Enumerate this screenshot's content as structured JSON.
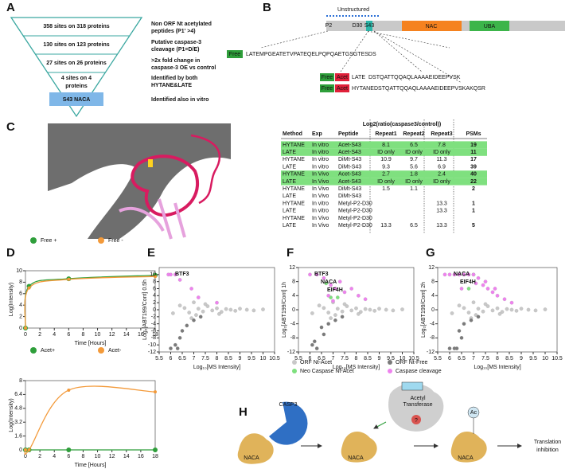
{
  "panels": {
    "letters": [
      "A",
      "B",
      "C",
      "D",
      "E",
      "F",
      "G",
      "H"
    ],
    "A": {
      "levels": [
        [
          "358 sites on 318 proteins"
        ],
        [
          "130 sites on 123 proteins"
        ],
        [
          "27 sites on 26 proteins"
        ],
        [
          "4 sites on 4",
          "proteins"
        ]
      ],
      "final": "S43 NACA",
      "descriptions": [
        [
          "Non ORF Nt acetylated",
          "peptides (P1' >4)"
        ],
        [
          "Putative caspase-3",
          "cleavage (P1=D/E)"
        ],
        [
          ">2x fold change in",
          "caspase-3 OE vs control"
        ],
        [
          "Identified by both",
          "HYTANE&LATE"
        ],
        [
          "Identified also in vitro"
        ]
      ]
    },
    "B": {
      "unstructured": "Unstructured",
      "sites": [
        "P2",
        "D30",
        "S43"
      ],
      "domains": [
        "NAC",
        "UBA"
      ],
      "tags": [
        "Free",
        "Acet"
      ],
      "methods": [
        "LATE",
        "HYTANE"
      ],
      "sequences": [
        "MPGEATETVPATEQELPQPQAETGSGTESDS",
        "DSTQATTQQAQLAAAAEIDEEPVSK",
        "DSTQATTQQAQLAAAAEIDEEPVSKAKQSR"
      ]
    },
    "C": {
      "group_header": "Log2(ratio(caspase3/control))",
      "header": [
        "Method",
        "Exp",
        "Peptide",
        "Repeat1",
        "Repeat2",
        "Repeat3",
        "PSMs"
      ],
      "rows": [
        {
          "cells": [
            "HYTANE",
            "In vitro",
            "Acet-S43",
            "8.1",
            "6.5",
            "7.8",
            "19"
          ],
          "highlight": true
        },
        {
          "cells": [
            "LATE",
            "In vitro",
            "Acet-S43",
            "ID only",
            "ID only",
            "ID only",
            "11"
          ],
          "highlight": true
        },
        {
          "cells": [
            "HYTANE",
            "In vitro",
            "DiMt-S43",
            "10.9",
            "9.7",
            "11.3",
            "17"
          ],
          "highlight": false
        },
        {
          "cells": [
            "LATE",
            "In vitro",
            "DiMt-S43",
            "9.3",
            "5.6",
            "6.9",
            "39"
          ],
          "highlight": false
        },
        {
          "cells": [
            "HYTANE",
            "In Vivo",
            "Acet-S43",
            "2.7",
            "1.8",
            "2.4",
            "40"
          ],
          "highlight": true
        },
        {
          "cells": [
            "LATE",
            "In Vivo",
            "Acet-S43",
            "ID only",
            "ID only",
            "ID only",
            "22"
          ],
          "highlight": true
        },
        {
          "cells": [
            "HYTANE",
            "In Vivo",
            "DiMt-S43",
            "1.5",
            "1.1",
            null,
            "2"
          ],
          "highlight": false
        },
        {
          "cells": [
            "LATE",
            "In Vivo",
            "DiMt-S43",
            null,
            null,
            null,
            null
          ],
          "highlight": false
        },
        {
          "cells": [
            "HYTANE",
            "In vitro",
            "Metyl-P2-D30",
            null,
            null,
            "13.3",
            "1"
          ],
          "highlight": false
        },
        {
          "cells": [
            "LATE",
            "In vitro",
            "Metyl-P2-D30",
            null,
            null,
            "13.3",
            "1"
          ],
          "highlight": false
        },
        {
          "cells": [
            "HYTANE",
            "In Vivo",
            "Metyl-P2-D30",
            null,
            null,
            null,
            null
          ],
          "highlight": false
        },
        {
          "cells": [
            "LATE",
            "In Vivo",
            "Metyl-P2-D30",
            "13.3",
            "6.5",
            "13.3",
            "5"
          ],
          "highlight": false
        }
      ]
    },
    "H": {
      "enzyme": "CASP3",
      "protein": "NACA",
      "transferase": [
        "Acetyl",
        "Transferase"
      ],
      "unknown": "?",
      "acetyl": "Ac",
      "outcome": [
        "Translation",
        "inhibition"
      ]
    }
  },
  "chart_data": [
    {
      "type": "line",
      "xlabel": "Time [Hours]",
      "ylabel": "Log(Intensity)",
      "x": [
        0,
        0.5,
        6,
        18
      ],
      "series": [
        {
          "name": "Free +",
          "color": "#2e9e3a",
          "values": [
            0,
            7.3,
            8.6,
            9.2
          ]
        },
        {
          "name": "Free -",
          "color": "#f39a3a",
          "values": [
            0,
            7,
            8.5,
            9
          ]
        }
      ],
      "xlim": [
        0,
        18
      ],
      "xticks": [
        0,
        2,
        4,
        6,
        8,
        10,
        12,
        14,
        16,
        18
      ],
      "ylim": [
        0,
        10
      ],
      "yticks": [
        0,
        2,
        4,
        6,
        8,
        10
      ]
    },
    {
      "type": "line",
      "xlabel": "Time [Hours]",
      "ylabel": "Log(Intensity)",
      "x": [
        0,
        0.5,
        6,
        18
      ],
      "series": [
        {
          "name": "Acet+",
          "color": "#2e9e3a",
          "values": [
            0,
            0,
            0,
            0
          ]
        },
        {
          "name": "Acet-",
          "color": "#f39a3a",
          "values": [
            0,
            0,
            6.9,
            6.7
          ]
        }
      ],
      "xlim": [
        0,
        18
      ],
      "xticks": [
        0,
        2,
        4,
        6,
        8,
        10,
        12,
        14,
        16,
        18
      ],
      "ylim": [
        0,
        8
      ],
      "yticks": [
        0,
        1.6,
        3.2,
        4.8,
        6.4,
        8
      ]
    },
    {
      "type": "scatter",
      "xlabel": "Log₁₀[MS Intensity]",
      "ylabel": "Log₂[ABT199/Cont] 0.5h",
      "annotations": [
        "BTF3"
      ],
      "xlim": [
        5.5,
        10.5
      ],
      "xticks": [
        5.5,
        6,
        6.5,
        7,
        7.5,
        8,
        8.5,
        9,
        9.5,
        10,
        10.5
      ],
      "ylim": [
        -12,
        12
      ],
      "yticks": [
        -12,
        -10,
        -8,
        -6,
        -4,
        -2,
        0,
        2,
        4,
        6,
        8,
        10
      ],
      "series": [
        {
          "name": "ORF Nt-Acet",
          "color": "#c8c8c8",
          "x": [
            6.1,
            6.4,
            6.6,
            6.8,
            7.0,
            7.2,
            7.4,
            7.6,
            7.8,
            8.0,
            8.2,
            8.4,
            8.6,
            8.8,
            9.0,
            9.3,
            9.6,
            10.0,
            6.9,
            7.5,
            8.1,
            7.1
          ],
          "y": [
            -1,
            1.2,
            0.5,
            -0.8,
            2.1,
            0.3,
            -0.5,
            1.0,
            -0.2,
            0.4,
            -0.6,
            0.2,
            0,
            -0.3,
            0.3,
            0,
            -0.2,
            0.1,
            -2.4,
            1.6,
            -1.2,
            -1.5
          ]
        },
        {
          "name": "ORF Nt-Free",
          "color": "#7a7a7a",
          "x": [
            6.0,
            6.2,
            6.3,
            6.5,
            6.7,
            7.0,
            7.3,
            6.4
          ],
          "y": [
            -11,
            -10,
            -11,
            -6,
            -4.5,
            -3,
            -2,
            -8
          ]
        },
        {
          "name": "Neo Caspase Nt-Acet",
          "color": "#7ee07e",
          "x": [],
          "y": []
        },
        {
          "name": "Caspase cleavage",
          "color": "#ee82ee",
          "x": [
            5.9,
            6.0,
            6.2,
            6.4,
            6.9,
            7.2,
            8.0
          ],
          "y": [
            10,
            10,
            10,
            8.5,
            6,
            3.5,
            2
          ]
        }
      ]
    },
    {
      "type": "scatter",
      "xlabel": "Log₁₀[MS Intensity]",
      "ylabel": "Log₂[ABT199/Cont] 1h",
      "annotations": [
        "BTF3",
        "NACA",
        "EIF4H"
      ],
      "legend": "bottom",
      "xlim": [
        5.5,
        10.5
      ],
      "xticks": [
        5.5,
        6,
        6.5,
        7,
        7.5,
        8,
        8.5,
        9,
        9.5,
        10,
        10.5
      ],
      "ylim": [
        -12,
        12
      ],
      "yticks": [
        -12,
        -8,
        -4,
        0,
        4,
        8,
        12
      ],
      "series": [
        {
          "name": "ORF Nt-Acet",
          "color": "#c8c8c8",
          "x": [
            6.1,
            6.4,
            6.6,
            6.8,
            7.0,
            7.2,
            7.4,
            7.6,
            7.8,
            8.0,
            8.2,
            8.4,
            8.6,
            8.8,
            9.0,
            9.3,
            9.6,
            10.0,
            6.9,
            7.5,
            8.1,
            7.1
          ],
          "y": [
            -1,
            1.2,
            0.5,
            -0.8,
            2.1,
            0.3,
            -0.5,
            1.0,
            -0.2,
            0.4,
            -0.6,
            0.2,
            0,
            -0.3,
            0.3,
            0,
            -0.2,
            0.1,
            -2.4,
            1.6,
            -1.2,
            -1.5
          ]
        },
        {
          "name": "ORF Nt-Free",
          "color": "#7a7a7a",
          "x": [
            6.1,
            6.3,
            6.5,
            6.6,
            6.8,
            7.1,
            7.4,
            6.2
          ],
          "y": [
            -10,
            -11,
            -5,
            -7,
            -4,
            -3,
            -2,
            -9
          ]
        },
        {
          "name": "Neo Caspase Nt-Acet",
          "color": "#7ee07e",
          "x": [
            6.9,
            7.2,
            6.7
          ],
          "y": [
            3.5,
            3.5,
            7.5
          ]
        },
        {
          "name": "Caspase cleavage",
          "color": "#ee82ee",
          "x": [
            6.0,
            6.3,
            6.6,
            6.9,
            7.1,
            7.3,
            7.5,
            7.8,
            8.1,
            8.4,
            7.0,
            6.8
          ],
          "y": [
            10,
            10,
            9,
            7,
            6,
            8,
            5,
            6,
            4,
            3,
            2.5,
            4
          ]
        }
      ]
    },
    {
      "type": "scatter",
      "xlabel": "Log₁₀[MS Intensity]",
      "ylabel": "Log₂[ABT199/Cont] 2h",
      "annotations": [
        "NACA",
        "EIF4H"
      ],
      "xlim": [
        5.5,
        10.5
      ],
      "xticks": [
        5.5,
        6,
        6.5,
        7,
        7.5,
        8,
        8.5,
        9,
        9.5,
        10,
        10.5
      ],
      "ylim": [
        -12,
        12
      ],
      "yticks": [
        -12,
        -8,
        -4,
        0,
        4,
        8,
        12
      ],
      "series": [
        {
          "name": "ORF Nt-Acet",
          "color": "#c8c8c8",
          "x": [
            6.1,
            6.4,
            6.6,
            6.8,
            7.0,
            7.2,
            7.4,
            7.6,
            7.8,
            8.0,
            8.2,
            8.4,
            8.6,
            8.8,
            9.0,
            9.3,
            9.6,
            10.0,
            6.9,
            7.5,
            8.1,
            7.1
          ],
          "y": [
            -1,
            1.2,
            0.5,
            -0.8,
            2.1,
            0.3,
            -0.5,
            1.0,
            -0.2,
            0.4,
            -0.6,
            0.2,
            0,
            -0.3,
            0.3,
            0,
            -0.2,
            0.1,
            -2.4,
            1.6,
            -1.2,
            -1.5
          ]
        },
        {
          "name": "ORF Nt-Free",
          "color": "#7a7a7a",
          "x": [
            6.0,
            6.2,
            6.4,
            6.6,
            6.9,
            7.2,
            6.5,
            6.3
          ],
          "y": [
            -11,
            -11,
            -6,
            -4,
            -3,
            -2,
            -8,
            -11
          ]
        },
        {
          "name": "Neo Caspase Nt-Acet",
          "color": "#7ee07e",
          "x": [
            6.6,
            7.0,
            6.8
          ],
          "y": [
            10,
            10,
            6
          ]
        },
        {
          "name": "Caspase cleavage",
          "color": "#ee82ee",
          "x": [
            5.8,
            6.0,
            6.2,
            6.4,
            6.6,
            6.8,
            7.0,
            7.2,
            7.4,
            7.6,
            7.8,
            8.0,
            8.3,
            8.6,
            6.5,
            7.1,
            7.5,
            7.9
          ],
          "y": [
            10,
            10,
            10,
            10,
            10,
            10,
            10,
            9,
            7,
            6,
            5,
            4,
            3,
            2,
            6,
            7.5,
            8,
            6
          ]
        }
      ]
    }
  ]
}
